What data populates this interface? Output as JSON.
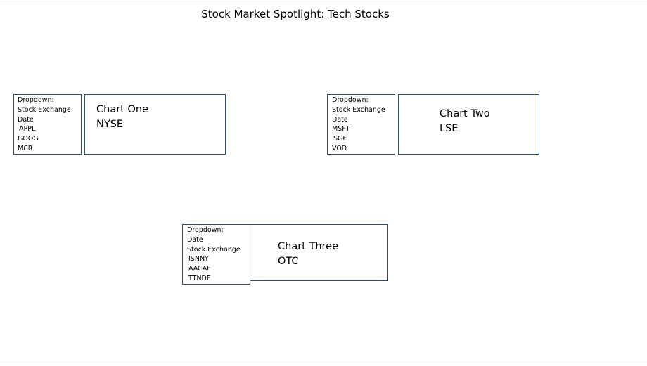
{
  "page": {
    "title": "Stock Market Spotlight: Tech Stocks"
  },
  "panels": [
    {
      "dropdown": {
        "lines": [
          "Dropdown:",
          "Stock Exchange",
          "Date",
          "APPL",
          "GOOG",
          "MCR"
        ]
      },
      "chart": {
        "title": "Chart One",
        "exchange": "NYSE"
      }
    },
    {
      "dropdown": {
        "lines": [
          "Dropdown:",
          "Stock Exchange",
          "Date",
          "MSFT",
          "SGE",
          "VOD"
        ]
      },
      "chart": {
        "title": "Chart Two",
        "exchange": "LSE"
      }
    },
    {
      "dropdown": {
        "lines": [
          "Dropdown:",
          "Date",
          "Stock Exchange",
          "ISNNY",
          "AACAF",
          "TTNDF"
        ]
      },
      "chart": {
        "title": "Chart Three",
        "exchange": "OTC"
      }
    }
  ],
  "colors": {
    "box_border": "#2f4f75",
    "background": "#ffffff",
    "text": "#000000"
  }
}
